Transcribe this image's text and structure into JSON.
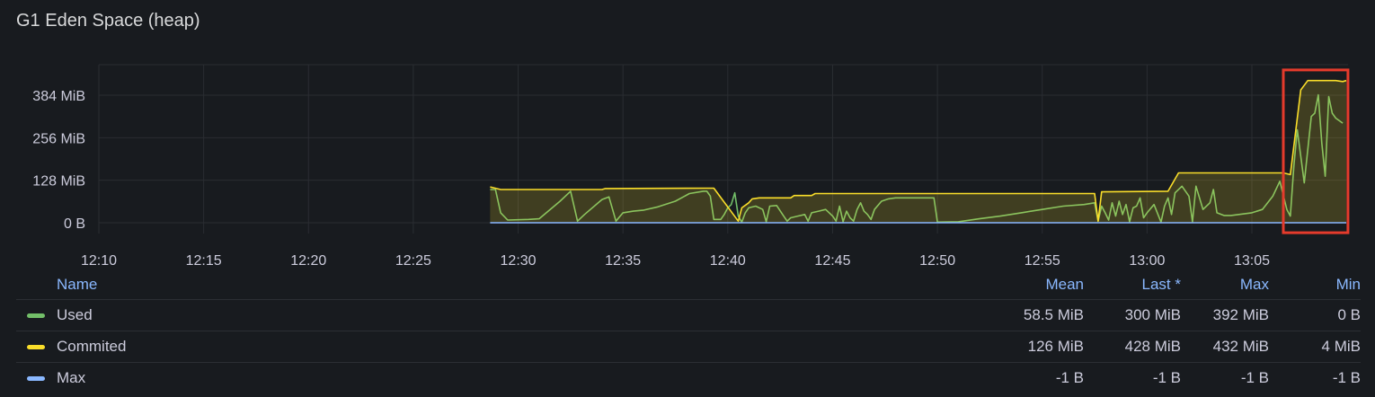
{
  "panel": {
    "title": "G1 Eden Space (heap)"
  },
  "chart_data": {
    "type": "line",
    "title": "G1 Eden Space (heap)",
    "x_ticks": [
      "12:10",
      "12:15",
      "12:20",
      "12:25",
      "12:30",
      "12:35",
      "12:40",
      "12:45",
      "12:50",
      "12:55",
      "13:00",
      "13:05"
    ],
    "x_range": [
      "12:08:30",
      "13:09:30"
    ],
    "y_ticks": [
      "0 B",
      "128 MiB",
      "256 MiB",
      "384 MiB"
    ],
    "y_tick_values": [
      0,
      128,
      256,
      384
    ],
    "y_unit": "MiB",
    "ylim": [
      0,
      480
    ],
    "grid": true,
    "legend_position": "bottom",
    "series": [
      {
        "name": "Used",
        "color": "#73bf69",
        "fill": false,
        "points": [
          [
            "12:28:40",
            100
          ],
          [
            "12:28:55",
            100
          ],
          [
            "12:29:10",
            30
          ],
          [
            "12:29:30",
            8
          ],
          [
            "12:30:30",
            10
          ],
          [
            "12:31:00",
            12
          ],
          [
            "12:32:00",
            65
          ],
          [
            "12:32:30",
            95
          ],
          [
            "12:32:50",
            5
          ],
          [
            "12:33:10",
            25
          ],
          [
            "12:34:00",
            70
          ],
          [
            "12:34:20",
            78
          ],
          [
            "12:34:40",
            5
          ],
          [
            "12:35:00",
            30
          ],
          [
            "12:35:30",
            35
          ],
          [
            "12:36:00",
            38
          ],
          [
            "12:36:40",
            48
          ],
          [
            "12:37:30",
            65
          ],
          [
            "12:38:10",
            88
          ],
          [
            "12:38:50",
            95
          ],
          [
            "12:39:00",
            95
          ],
          [
            "12:39:10",
            80
          ],
          [
            "12:39:20",
            10
          ],
          [
            "12:39:40",
            10
          ],
          [
            "12:39:50",
            25
          ],
          [
            "12:40:00",
            45
          ],
          [
            "12:40:10",
            55
          ],
          [
            "12:40:20",
            90
          ],
          [
            "12:40:30",
            20
          ],
          [
            "12:40:40",
            2
          ],
          [
            "12:40:50",
            30
          ],
          [
            "12:41:00",
            45
          ],
          [
            "12:41:20",
            50
          ],
          [
            "12:41:40",
            40
          ],
          [
            "12:41:50",
            3
          ],
          [
            "12:42:00",
            50
          ],
          [
            "12:42:20",
            52
          ],
          [
            "12:42:40",
            20
          ],
          [
            "12:42:50",
            5
          ],
          [
            "12:43:00",
            15
          ],
          [
            "12:43:20",
            20
          ],
          [
            "12:43:40",
            25
          ],
          [
            "12:43:50",
            5
          ],
          [
            "12:44:00",
            30
          ],
          [
            "12:44:20",
            35
          ],
          [
            "12:44:40",
            40
          ],
          [
            "12:45:00",
            20
          ],
          [
            "12:45:10",
            5
          ],
          [
            "12:45:20",
            50
          ],
          [
            "12:45:30",
            3
          ],
          [
            "12:45:40",
            35
          ],
          [
            "12:45:50",
            15
          ],
          [
            "12:46:00",
            5
          ],
          [
            "12:46:10",
            40
          ],
          [
            "12:46:20",
            60
          ],
          [
            "12:46:30",
            35
          ],
          [
            "12:46:40",
            25
          ],
          [
            "12:46:50",
            10
          ],
          [
            "12:47:00",
            40
          ],
          [
            "12:47:20",
            65
          ],
          [
            "12:47:40",
            72
          ],
          [
            "12:48:00",
            75
          ],
          [
            "12:49:00",
            75
          ],
          [
            "12:49:50",
            75
          ],
          [
            "12:50:00",
            2
          ],
          [
            "12:51:00",
            3
          ],
          [
            "12:52:00",
            12
          ],
          [
            "12:53:00",
            20
          ],
          [
            "12:54:00",
            30
          ],
          [
            "12:55:00",
            40
          ],
          [
            "12:56:00",
            50
          ],
          [
            "12:57:00",
            55
          ],
          [
            "12:57:30",
            60
          ],
          [
            "12:57:40",
            5
          ],
          [
            "12:57:50",
            50
          ],
          [
            "12:58:00",
            30
          ],
          [
            "12:58:10",
            8
          ],
          [
            "12:58:20",
            60
          ],
          [
            "12:58:30",
            20
          ],
          [
            "12:58:40",
            65
          ],
          [
            "12:58:50",
            25
          ],
          [
            "12:59:00",
            55
          ],
          [
            "12:59:10",
            3
          ],
          [
            "12:59:20",
            45
          ],
          [
            "12:59:30",
            50
          ],
          [
            "12:59:40",
            75
          ],
          [
            "12:59:50",
            15
          ],
          [
            "13:00:00",
            30
          ],
          [
            "13:00:20",
            55
          ],
          [
            "13:00:40",
            2
          ],
          [
            "13:00:50",
            50
          ],
          [
            "13:01:00",
            75
          ],
          [
            "13:01:10",
            25
          ],
          [
            "13:01:20",
            90
          ],
          [
            "13:01:40",
            110
          ],
          [
            "13:02:00",
            80
          ],
          [
            "13:02:10",
            3
          ],
          [
            "13:02:20",
            110
          ],
          [
            "13:02:40",
            40
          ],
          [
            "13:03:00",
            60
          ],
          [
            "13:03:10",
            100
          ],
          [
            "13:03:20",
            30
          ],
          [
            "13:03:40",
            22
          ],
          [
            "13:04:00",
            22
          ],
          [
            "13:05:00",
            30
          ],
          [
            "13:05:30",
            40
          ],
          [
            "13:06:00",
            80
          ],
          [
            "13:06:20",
            125
          ],
          [
            "13:06:40",
            40
          ],
          [
            "13:06:50",
            20
          ],
          [
            "13:07:00",
            170
          ],
          [
            "13:07:10",
            280
          ],
          [
            "13:07:20",
            200
          ],
          [
            "13:07:30",
            120
          ],
          [
            "13:07:50",
            320
          ],
          [
            "13:08:00",
            330
          ],
          [
            "13:08:10",
            385
          ],
          [
            "13:08:20",
            240
          ],
          [
            "13:08:30",
            140
          ],
          [
            "13:08:40",
            380
          ],
          [
            "13:08:50",
            330
          ],
          [
            "13:09:00",
            315
          ],
          [
            "13:09:20",
            300
          ]
        ]
      },
      {
        "name": "Commited",
        "color": "#fade2a",
        "fill": true,
        "points": [
          [
            "12:28:40",
            108
          ],
          [
            "12:29:10",
            100
          ],
          [
            "12:34:00",
            100
          ],
          [
            "12:34:10",
            103
          ],
          [
            "12:39:00",
            104
          ],
          [
            "12:39:20",
            104
          ],
          [
            "12:40:30",
            5
          ],
          [
            "12:40:40",
            45
          ],
          [
            "12:41:00",
            60
          ],
          [
            "12:41:10",
            72
          ],
          [
            "12:41:30",
            75
          ],
          [
            "12:43:00",
            75
          ],
          [
            "12:43:10",
            82
          ],
          [
            "12:44:00",
            82
          ],
          [
            "12:44:10",
            88
          ],
          [
            "12:57:30",
            88
          ],
          [
            "12:57:40",
            5
          ],
          [
            "12:57:50",
            93
          ],
          [
            "13:01:00",
            95
          ],
          [
            "13:01:30",
            150
          ],
          [
            "13:06:30",
            150
          ],
          [
            "13:06:50",
            145
          ],
          [
            "13:07:20",
            400
          ],
          [
            "13:07:40",
            428
          ],
          [
            "13:09:00",
            428
          ],
          [
            "13:09:20",
            425
          ],
          [
            "13:09:30",
            428
          ]
        ]
      },
      {
        "name": "Max",
        "color": "#8ab8ff",
        "fill": false,
        "points": [
          [
            "12:28:40",
            0
          ],
          [
            "13:09:30",
            0
          ]
        ]
      }
    ]
  },
  "legend": {
    "headers": {
      "name": "Name",
      "mean": "Mean",
      "last": "Last *",
      "max": "Max",
      "min": "Min"
    },
    "rows": [
      {
        "name": "Used",
        "color": "#73bf69",
        "mean": "58.5 MiB",
        "last": "300 MiB",
        "max": "392 MiB",
        "min": "0 B"
      },
      {
        "name": "Commited",
        "color": "#fade2a",
        "mean": "126 MiB",
        "last": "428 MiB",
        "max": "432 MiB",
        "min": "4 MiB"
      },
      {
        "name": "Max",
        "color": "#8ab8ff",
        "mean": "-1 B",
        "last": "-1 B",
        "max": "-1 B",
        "min": "-1 B"
      }
    ]
  },
  "annotation": {
    "color": "#e53b2c",
    "from": "13:06:30",
    "to": "13:09:35",
    "y_top": 460,
    "y_bottom": -30
  }
}
